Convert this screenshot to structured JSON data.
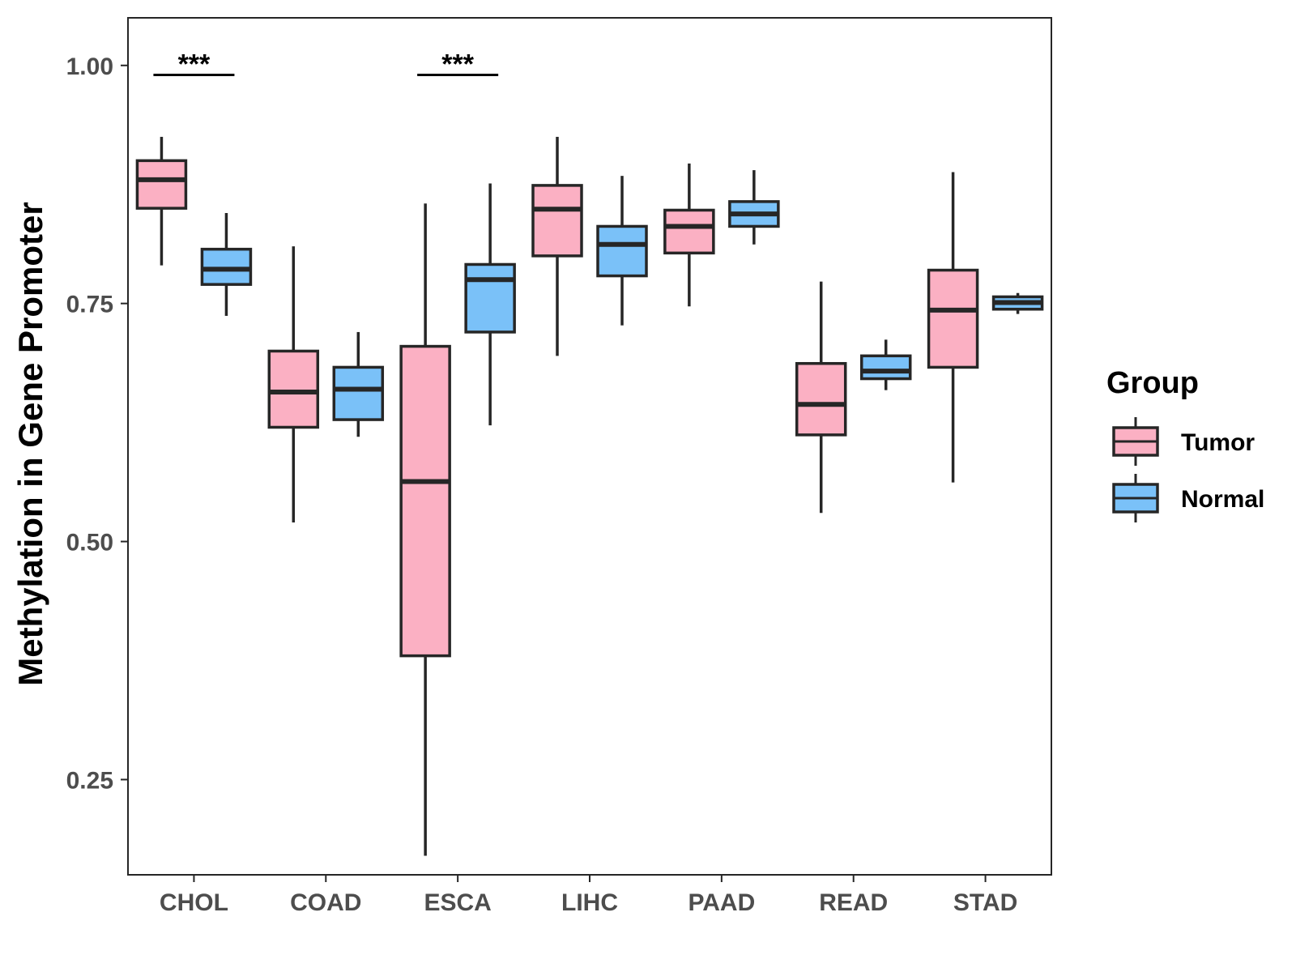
{
  "chart_data": {
    "type": "boxplot",
    "title": "",
    "xlabel": "",
    "ylabel": "Methylation in Gene Promoter",
    "ylim": [
      0.15,
      1.05
    ],
    "yticks": [
      0.25,
      0.5,
      0.75,
      1.0
    ],
    "ytick_labels": [
      "0.25",
      "0.50",
      "0.75",
      "1.00"
    ],
    "categories": [
      "CHOL",
      "COAD",
      "ESCA",
      "LIHC",
      "PAAD",
      "READ",
      "STAD"
    ],
    "legend": {
      "title": "Group",
      "position": "right",
      "entries": [
        {
          "name": "Tumor",
          "color": "#fbb0c3"
        },
        {
          "name": "Normal",
          "color": "#7ac1f8"
        }
      ]
    },
    "series": [
      {
        "name": "Tumor",
        "color": "#fbb0c3",
        "boxes": [
          {
            "category": "CHOL",
            "whisker_low": 0.79,
            "q1": 0.85,
            "median": 0.88,
            "q3": 0.9,
            "whisker_high": 0.925
          },
          {
            "category": "COAD",
            "whisker_low": 0.52,
            "q1": 0.62,
            "median": 0.657,
            "q3": 0.7,
            "whisker_high": 0.81
          },
          {
            "category": "ESCA",
            "whisker_low": 0.17,
            "q1": 0.38,
            "median": 0.563,
            "q3": 0.705,
            "whisker_high": 0.855
          },
          {
            "category": "LIHC",
            "whisker_low": 0.695,
            "q1": 0.8,
            "median": 0.849,
            "q3": 0.874,
            "whisker_high": 0.925
          },
          {
            "category": "PAAD",
            "whisker_low": 0.747,
            "q1": 0.803,
            "median": 0.831,
            "q3": 0.848,
            "whisker_high": 0.897
          },
          {
            "category": "READ",
            "whisker_low": 0.53,
            "q1": 0.612,
            "median": 0.644,
            "q3": 0.687,
            "whisker_high": 0.773
          },
          {
            "category": "STAD",
            "whisker_low": 0.562,
            "q1": 0.683,
            "median": 0.743,
            "q3": 0.785,
            "whisker_high": 0.888
          }
        ]
      },
      {
        "name": "Normal",
        "color": "#7ac1f8",
        "boxes": [
          {
            "category": "CHOL",
            "whisker_low": 0.737,
            "q1": 0.77,
            "median": 0.786,
            "q3": 0.807,
            "whisker_high": 0.845
          },
          {
            "category": "COAD",
            "whisker_low": 0.61,
            "q1": 0.628,
            "median": 0.66,
            "q3": 0.683,
            "whisker_high": 0.72
          },
          {
            "category": "ESCA",
            "whisker_low": 0.622,
            "q1": 0.72,
            "median": 0.775,
            "q3": 0.791,
            "whisker_high": 0.876
          },
          {
            "category": "LIHC",
            "whisker_low": 0.727,
            "q1": 0.779,
            "median": 0.812,
            "q3": 0.831,
            "whisker_high": 0.884
          },
          {
            "category": "PAAD",
            "whisker_low": 0.812,
            "q1": 0.831,
            "median": 0.844,
            "q3": 0.857,
            "whisker_high": 0.89
          },
          {
            "category": "READ",
            "whisker_low": 0.659,
            "q1": 0.671,
            "median": 0.679,
            "q3": 0.695,
            "whisker_high": 0.712
          },
          {
            "category": "STAD",
            "whisker_low": 0.739,
            "q1": 0.744,
            "median": 0.751,
            "q3": 0.757,
            "whisker_high": 0.761
          }
        ]
      }
    ],
    "annotations": [
      {
        "category": "CHOL",
        "text": "***",
        "y": 0.99
      },
      {
        "category": "ESCA",
        "text": "***",
        "y": 0.99
      }
    ],
    "grid": false
  }
}
